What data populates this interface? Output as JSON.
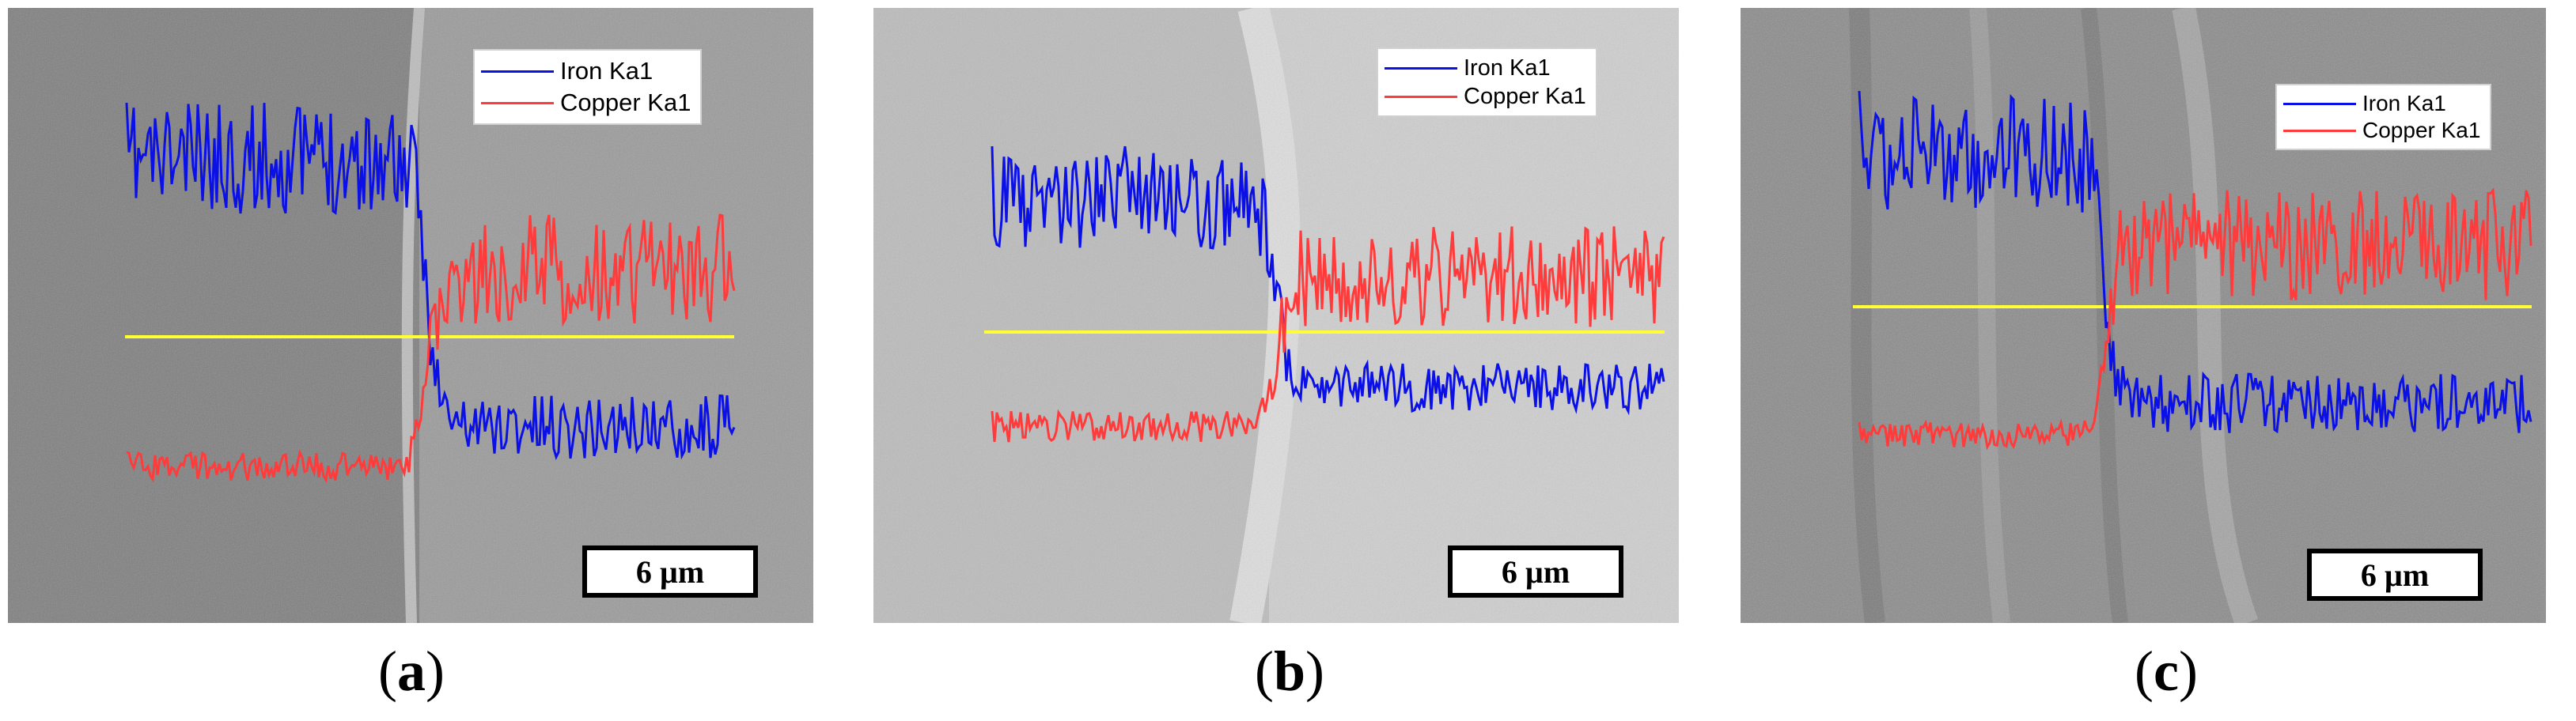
{
  "figure": {
    "panels": [
      {
        "id": "a",
        "caption_open": "(",
        "caption_letter": "a",
        "caption_close": ")",
        "legend": [
          "Iron Ka1",
          "Copper Ka1"
        ],
        "scale_bar": "6 µm"
      },
      {
        "id": "b",
        "caption_open": "(",
        "caption_letter": "b",
        "caption_close": ")",
        "legend": [
          "Iron Ka1",
          "Copper Ka1"
        ],
        "scale_bar": "6 µm"
      },
      {
        "id": "c",
        "caption_open": "(",
        "caption_letter": "c",
        "caption_close": ")",
        "legend": [
          "Iron Ka1",
          "Copper Ka1"
        ],
        "scale_bar": "6 µm"
      }
    ],
    "colors": {
      "iron": "#0a10e6",
      "copper": "#ff3b3b",
      "scan_line": "#ffff33"
    }
  }
}
